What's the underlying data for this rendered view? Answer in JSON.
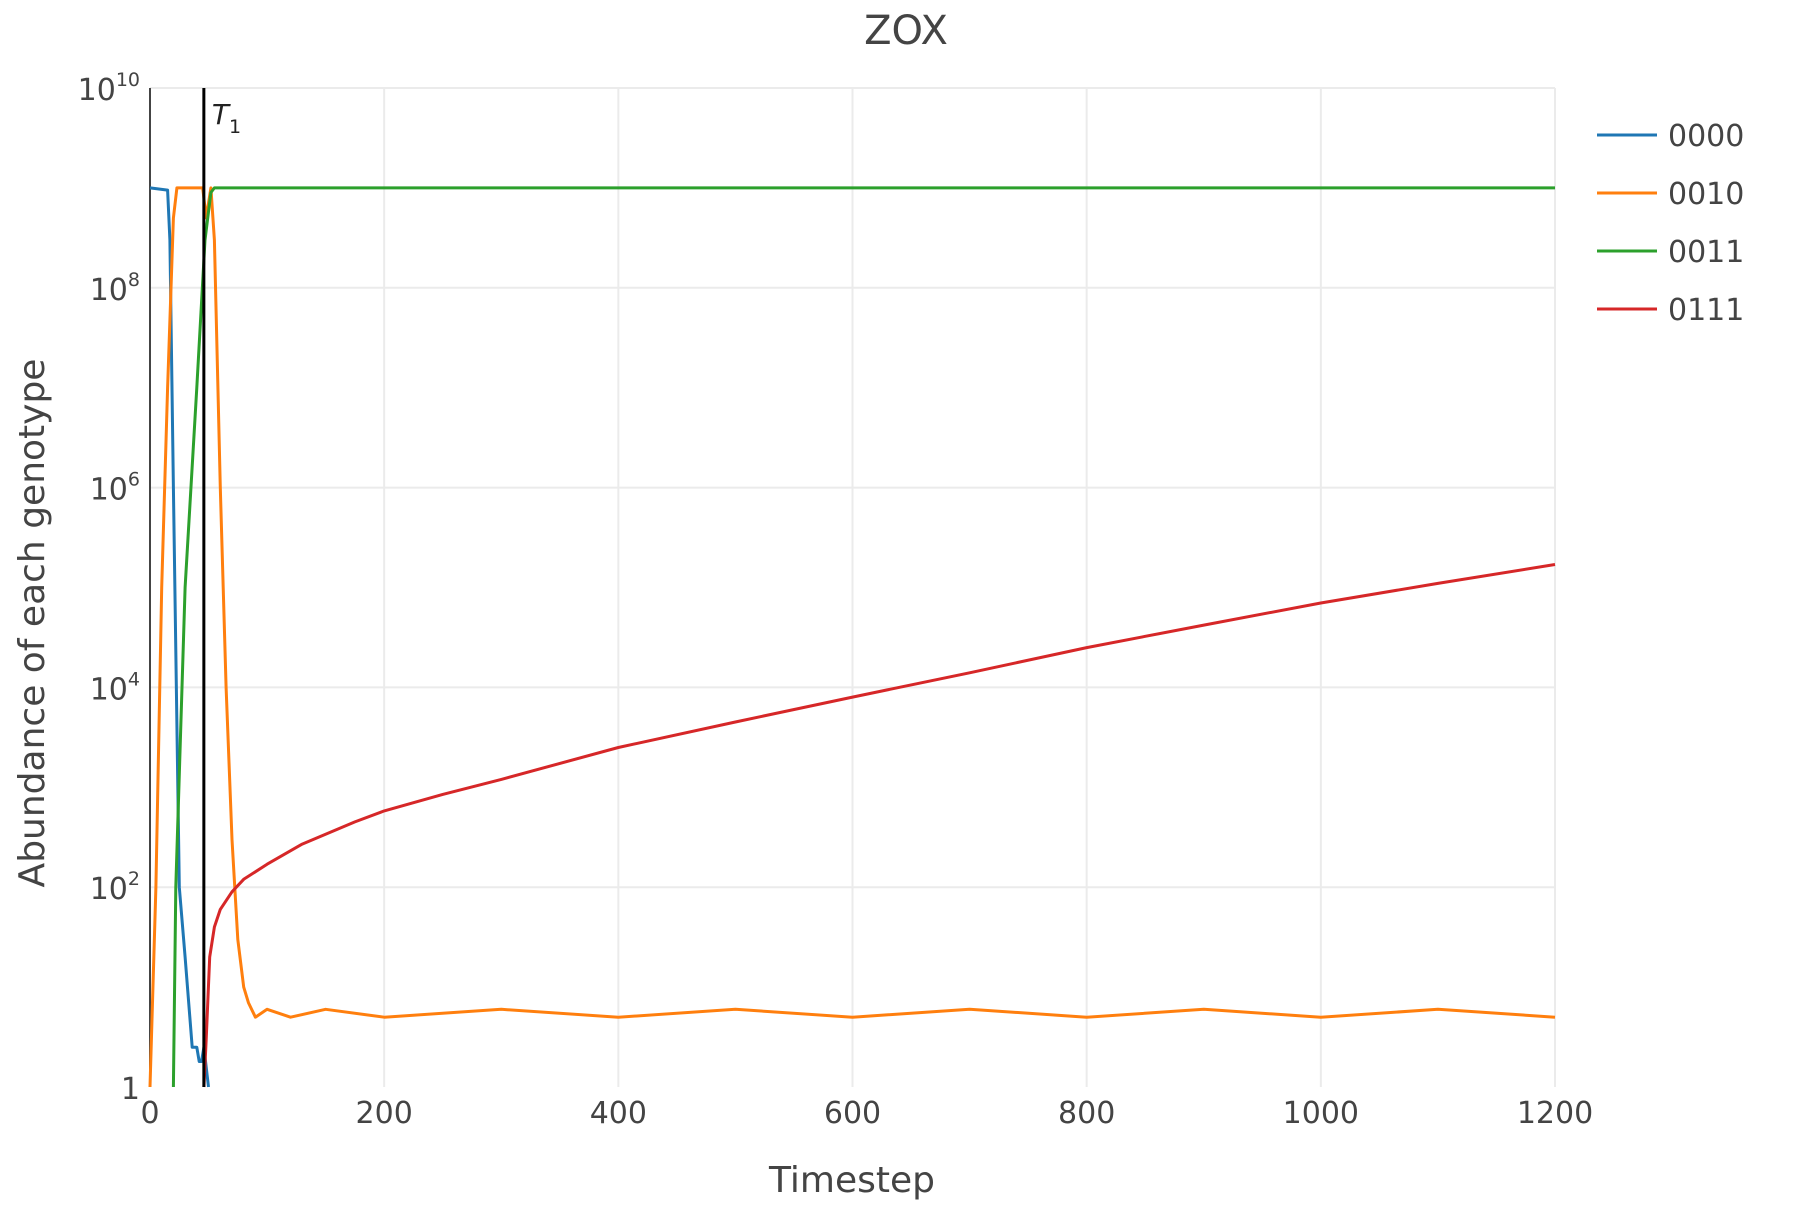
{
  "chart_data": {
    "type": "line",
    "title": "ZOX",
    "xlabel": "Timestep",
    "ylabel": "Abundance of each genotype",
    "x_range": [
      0,
      1200
    ],
    "y_scale": "log",
    "y_range": [
      1,
      10000000000
    ],
    "grid": true,
    "legend_position": "right",
    "x_ticks": [
      {
        "value": 0,
        "label": "0"
      },
      {
        "value": 200,
        "label": "200"
      },
      {
        "value": 400,
        "label": "400"
      },
      {
        "value": 600,
        "label": "600"
      },
      {
        "value": 800,
        "label": "800"
      },
      {
        "value": 1000,
        "label": "1000"
      },
      {
        "value": 1200,
        "label": "1200"
      }
    ],
    "y_ticks": [
      {
        "value": 1,
        "base": "1",
        "exp": ""
      },
      {
        "value": 100,
        "base": "10",
        "exp": "2"
      },
      {
        "value": 10000,
        "base": "10",
        "exp": "4"
      },
      {
        "value": 1000000,
        "base": "10",
        "exp": "6"
      },
      {
        "value": 100000000,
        "base": "10",
        "exp": "8"
      },
      {
        "value": 10000000000,
        "base": "10",
        "exp": "10"
      }
    ],
    "annotations": [
      {
        "x": 46,
        "label": "T",
        "subscript": "1"
      }
    ],
    "series": [
      {
        "name": "0000",
        "color": "#1f77b4",
        "points": [
          [
            0,
            1000000000
          ],
          [
            15,
            950000000
          ],
          [
            17,
            300000000
          ],
          [
            20,
            1000000
          ],
          [
            25,
            100
          ],
          [
            30,
            20
          ],
          [
            36,
            2.5
          ],
          [
            40,
            2.5
          ],
          [
            42,
            1.8
          ],
          [
            44,
            1.8
          ],
          [
            46,
            2.5
          ],
          [
            50,
            1
          ]
        ]
      },
      {
        "name": "0010",
        "color": "#ff7f0e",
        "points": [
          [
            0,
            1
          ],
          [
            5,
            100
          ],
          [
            10,
            100000
          ],
          [
            15,
            10000000
          ],
          [
            20,
            500000000
          ],
          [
            23,
            1000000000
          ],
          [
            30,
            1000000000
          ],
          [
            45,
            1000000000
          ],
          [
            48,
            500000000
          ],
          [
            52,
            1000000000
          ],
          [
            55,
            300000000
          ],
          [
            60,
            1000000
          ],
          [
            65,
            10000
          ],
          [
            70,
            300
          ],
          [
            75,
            30
          ],
          [
            80,
            10
          ],
          [
            84,
            7
          ],
          [
            90,
            5
          ],
          [
            100,
            6
          ],
          [
            120,
            5
          ],
          [
            150,
            6
          ],
          [
            200,
            5
          ],
          [
            300,
            6
          ],
          [
            400,
            5
          ],
          [
            500,
            6
          ],
          [
            600,
            5
          ],
          [
            700,
            6
          ],
          [
            800,
            5
          ],
          [
            900,
            6
          ],
          [
            1000,
            5
          ],
          [
            1100,
            6
          ],
          [
            1200,
            5
          ]
        ]
      },
      {
        "name": "0011",
        "color": "#2ca02c",
        "points": [
          [
            20,
            1
          ],
          [
            22,
            100
          ],
          [
            30,
            100000
          ],
          [
            40,
            10000000
          ],
          [
            47,
            300000000
          ],
          [
            52,
            900000000
          ],
          [
            55,
            1000000000
          ],
          [
            60,
            1000000000
          ],
          [
            200,
            1000000000
          ],
          [
            400,
            1000000000
          ],
          [
            600,
            1000000000
          ],
          [
            800,
            1000000000
          ],
          [
            1000,
            1000000000
          ],
          [
            1200,
            1000000000
          ]
        ]
      },
      {
        "name": "0111",
        "color": "#d62728",
        "points": [
          [
            46,
            1
          ],
          [
            48,
            3
          ],
          [
            51,
            20
          ],
          [
            55,
            40
          ],
          [
            60,
            60
          ],
          [
            70,
            90
          ],
          [
            80,
            120
          ],
          [
            100,
            170
          ],
          [
            130,
            270
          ],
          [
            175,
            450
          ],
          [
            200,
            580
          ],
          [
            250,
            850
          ],
          [
            300,
            1200
          ],
          [
            400,
            2500
          ],
          [
            500,
            4500
          ],
          [
            600,
            8000
          ],
          [
            700,
            14000
          ],
          [
            800,
            25000
          ],
          [
            900,
            42000
          ],
          [
            1000,
            70000
          ],
          [
            1100,
            110000
          ],
          [
            1200,
            170000
          ]
        ]
      }
    ]
  }
}
